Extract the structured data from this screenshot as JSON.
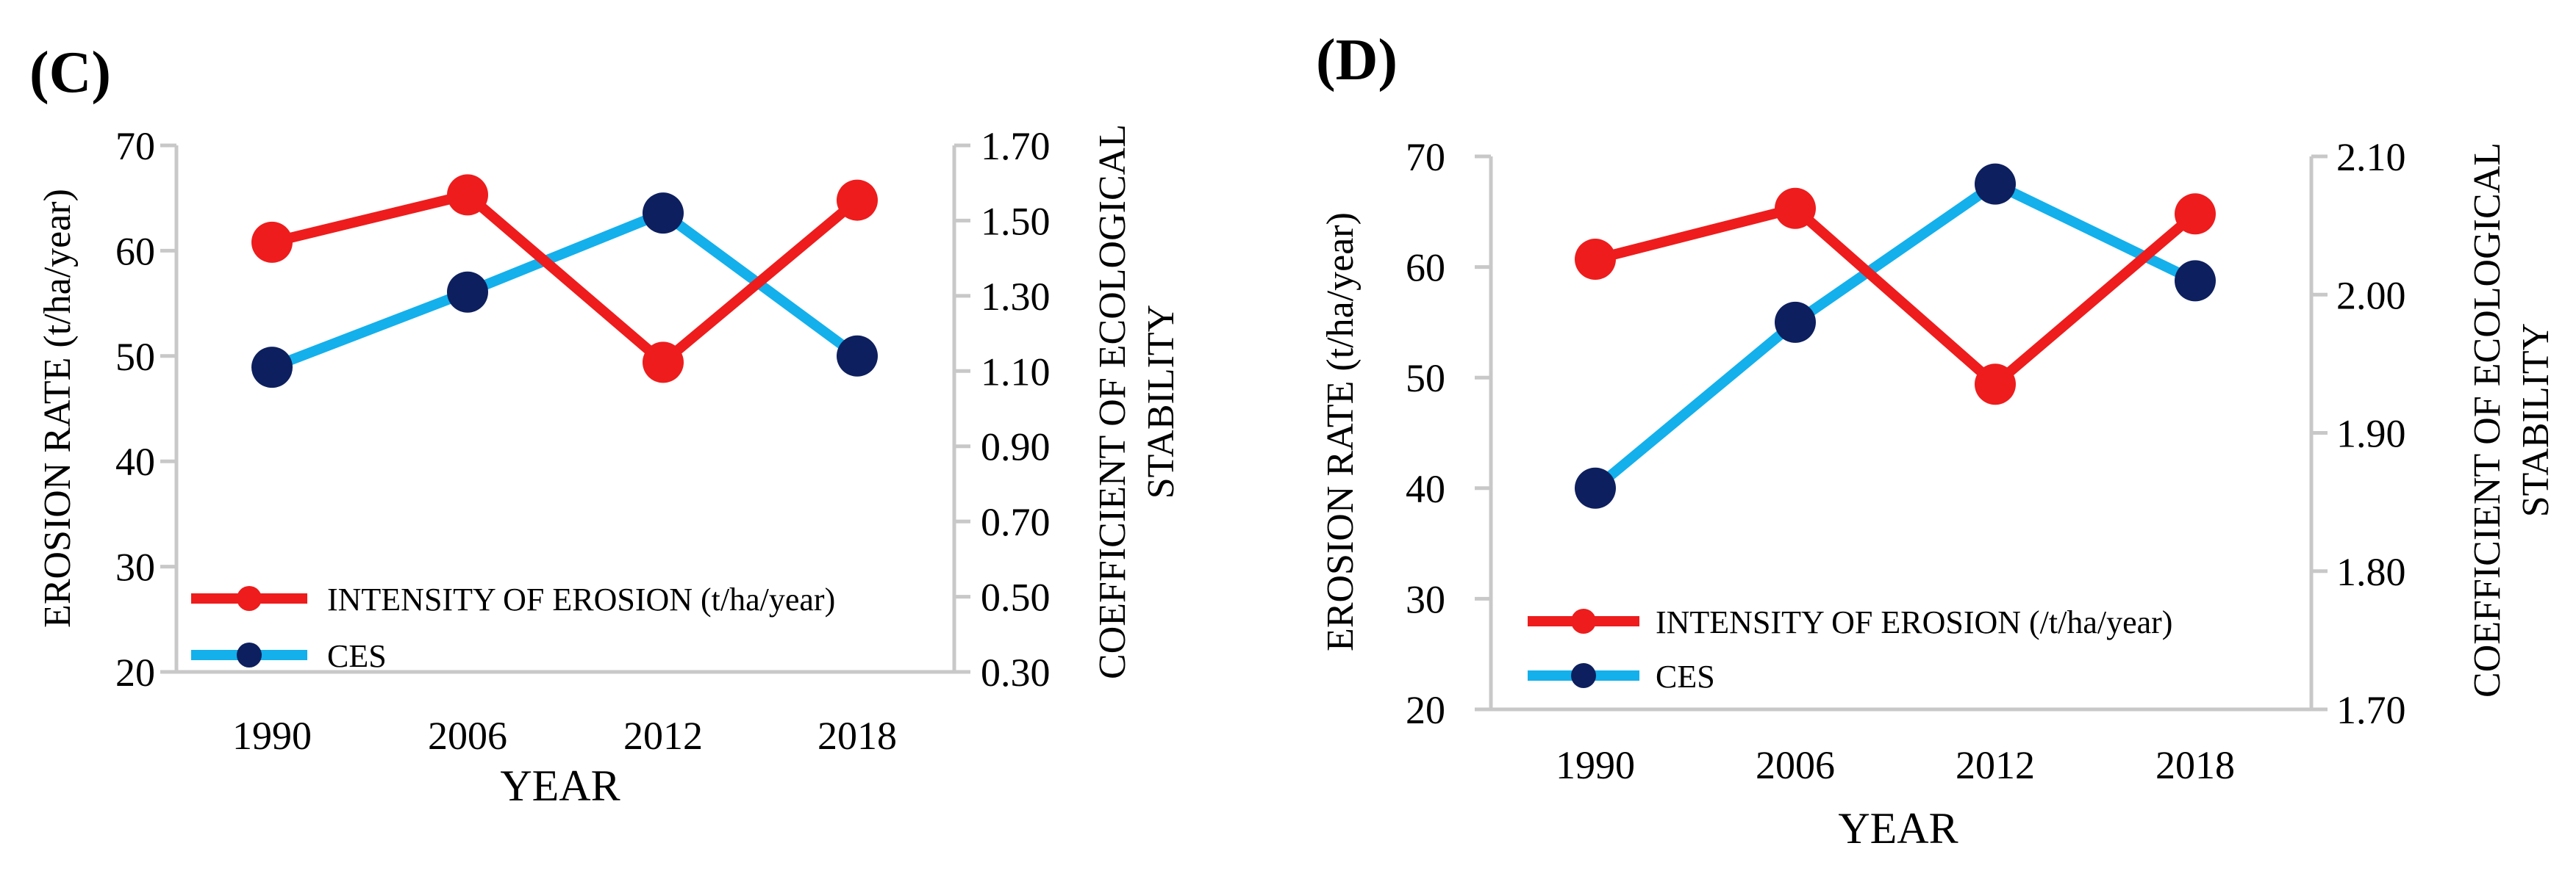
{
  "colors": {
    "intensity": "#ee1c1c",
    "ces_line": "#13b0ec",
    "ces_marker": "#0d1f5e",
    "axis": "#c8c8c8"
  },
  "chart_data": [
    {
      "panel_label": "(C)",
      "type": "line",
      "categories": [
        "1990",
        "2006",
        "2012",
        "2018"
      ],
      "xlabel": "YEAR",
      "ylabel": "EROSION RATE (t/ha/year)",
      "y2label_lines": [
        "COEFFICIENT OF ECOLOGICAL",
        "STABILITY"
      ],
      "ylim": [
        20,
        70
      ],
      "yticks": [
        "20",
        "30",
        "40",
        "50",
        "60",
        "70"
      ],
      "y2lim": [
        0.3,
        1.7
      ],
      "y2ticks": [
        "0.30",
        "0.50",
        "0.70",
        "0.90",
        "1.10",
        "1.30",
        "1.50",
        "1.70"
      ],
      "series": [
        {
          "name": "INTENSITY OF EROSION (t/ha/year)",
          "axis": "left",
          "values": [
            60.8,
            65.3,
            49.4,
            64.8
          ]
        },
        {
          "name": "CES",
          "axis": "right",
          "values": [
            1.11,
            1.31,
            1.52,
            1.14
          ]
        }
      ]
    },
    {
      "panel_label": "(D)",
      "type": "line",
      "categories": [
        "1990",
        "2006",
        "2012",
        "2018"
      ],
      "xlabel": "YEAR",
      "ylabel": "EROSION RATE (t/ha/year)",
      "y2label_lines": [
        "COEFFICIENT OF ECOLOGICAL",
        "STABILITY"
      ],
      "ylim": [
        20,
        70
      ],
      "yticks": [
        "20",
        "30",
        "40",
        "50",
        "60",
        "70"
      ],
      "y2lim": [
        1.7,
        2.1
      ],
      "y2ticks": [
        "1.70",
        "1.80",
        "1.90",
        "2.00",
        "2.10"
      ],
      "series": [
        {
          "name": "INTENSITY OF EROSION (/t/ha/year)",
          "axis": "left",
          "values": [
            60.7,
            65.3,
            49.4,
            64.8
          ]
        },
        {
          "name": "CES",
          "axis": "right",
          "values": [
            1.86,
            1.98,
            2.08,
            2.01
          ]
        }
      ]
    }
  ]
}
